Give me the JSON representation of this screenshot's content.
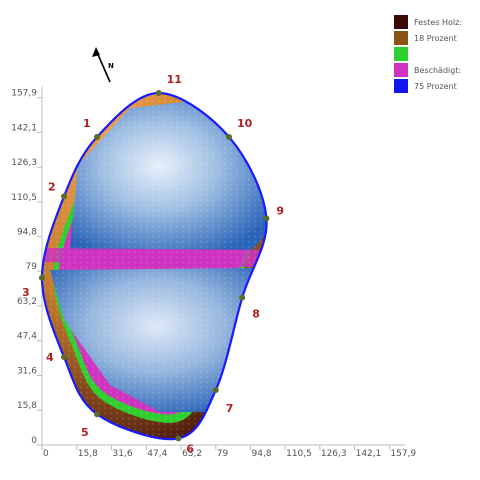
{
  "chart_data": {
    "type": "heatmap",
    "title": "",
    "xlabel": "",
    "ylabel": "",
    "xlim": [
      0,
      165
    ],
    "ylim": [
      0,
      163
    ],
    "x_ticks": [
      0,
      15.8,
      31.6,
      47.4,
      63.2,
      79,
      94.8,
      110.5,
      126.3,
      142.1,
      157.9
    ],
    "x_tick_labels": [
      "0",
      "15,8",
      "31,6",
      "47,4",
      "63,2",
      "79",
      "94,8",
      "110,5",
      "126,3",
      "142,1",
      "157,9"
    ],
    "y_ticks": [
      0,
      15.8,
      31.6,
      47.4,
      63.2,
      79,
      94.8,
      110.5,
      126.3,
      142.1,
      157.9
    ],
    "y_tick_labels": [
      "0",
      "15,8",
      "31,6",
      "47,4",
      "63,2",
      "79",
      "94,8",
      "110,5",
      "126,3",
      "142,1",
      "157,9"
    ],
    "legend": {
      "position": "top-right",
      "entries": [
        {
          "label": "Festes Holz:",
          "color": "#3a0a05"
        },
        {
          "label": "18 Prozent",
          "color": "#8a5513"
        },
        {
          "label": "",
          "color": "#2fcf2f"
        },
        {
          "label": "Beschädigt:",
          "color": "#cf33c0"
        },
        {
          "label": "75 Prozent",
          "color": "#1515f0"
        }
      ]
    },
    "measurement_points": [
      {
        "label": "1",
        "x": 25,
        "y": 140
      },
      {
        "label": "2",
        "x": 10,
        "y": 113
      },
      {
        "label": "3",
        "x": 0,
        "y": 76
      },
      {
        "label": "4",
        "x": 10,
        "y": 40
      },
      {
        "label": "5",
        "x": 25,
        "y": 14
      },
      {
        "label": "6",
        "x": 62,
        "y": 3
      },
      {
        "label": "7",
        "x": 79,
        "y": 25
      },
      {
        "label": "8",
        "x": 91,
        "y": 67
      },
      {
        "label": "9",
        "x": 102,
        "y": 103
      },
      {
        "label": "10",
        "x": 85,
        "y": 140
      },
      {
        "label": "11",
        "x": 53,
        "y": 160
      }
    ],
    "north_arrow": "N",
    "damaged_share_percent": 75,
    "solid_wood_share_percent": 18
  },
  "colors": {
    "outline": "#1a1aff",
    "axis": "#bdbdbd",
    "point": "#5a6b2a",
    "label": "#b02020",
    "sound_dark": "#3a0a05",
    "sound_mid": "#8a5513",
    "sound_light": "#f39a45",
    "transition": "#2fcf2f",
    "damaged_edge": "#cf33c0",
    "damaged_core": "#1f5fb0",
    "damaged_center": "#d8e6f5"
  }
}
